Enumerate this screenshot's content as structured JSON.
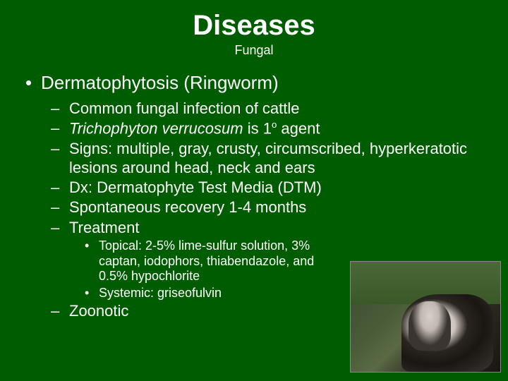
{
  "background_color": "#005c00",
  "text_color": "#ffffff",
  "title": "Diseases",
  "subtitle": "Fungal",
  "heading": "Dermatophytosis (Ringworm)",
  "level2": {
    "a": "Common fungal infection of cattle",
    "b_italic": "Trichophyton verrucosum",
    "b_rest": " is 1",
    "b_sup": "o",
    "b_tail": " agent",
    "c": "Signs: multiple, gray, crusty, circumscribed, hyperkeratotic lesions around head, neck and ears",
    "d": "Dx: Dermatophyte Test Media (DTM)",
    "e": "Spontaneous recovery 1-4 months",
    "f": "Treatment",
    "g": "Zoonotic"
  },
  "level3": {
    "a": "Topical:  2-5% lime-sulfur solution, 3% captan, iodophors, thiabendazole, and 0.5% hypochlorite",
    "b": "Systemic: griseofulvin"
  },
  "fonts": {
    "title_size": 40,
    "subtitle_size": 18,
    "l1_size": 26,
    "l2_size": 22,
    "l3_size": 18
  }
}
